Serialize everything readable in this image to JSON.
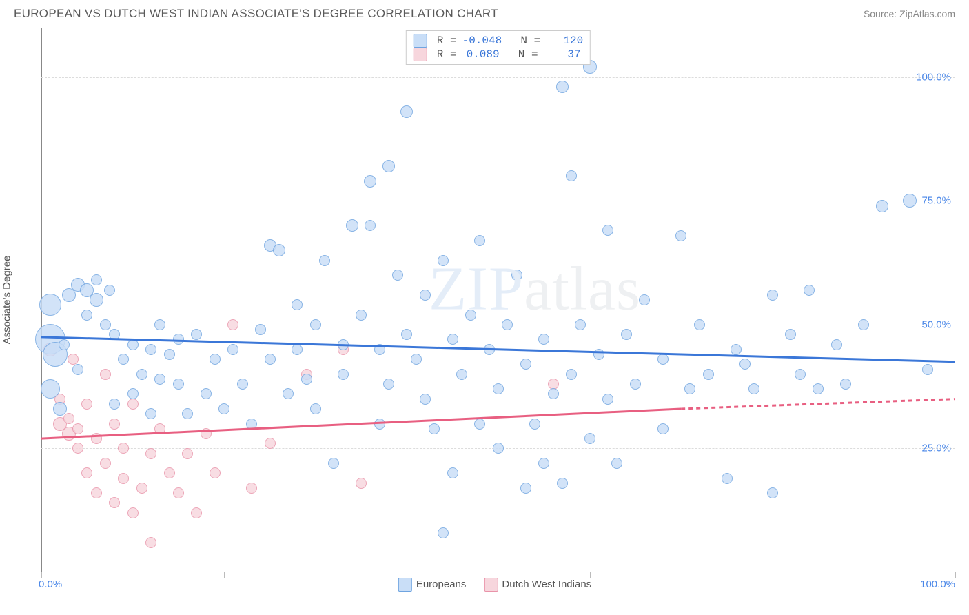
{
  "header": {
    "title": "EUROPEAN VS DUTCH WEST INDIAN ASSOCIATE'S DEGREE CORRELATION CHART",
    "source": "Source: ZipAtlas.com"
  },
  "watermark": {
    "part1": "ZIP",
    "part2": "atlas"
  },
  "yaxis_label": "Associate's Degree",
  "chart": {
    "type": "scatter",
    "xlim": [
      0,
      100
    ],
    "ylim": [
      0,
      110
    ],
    "gridlines_y": [
      25,
      50,
      75,
      100
    ],
    "ytick_labels": [
      "25.0%",
      "50.0%",
      "75.0%",
      "100.0%"
    ],
    "xticks": [
      0,
      20,
      40,
      60,
      80,
      100
    ],
    "xlim_labels": {
      "left": "0.0%",
      "right": "100.0%"
    },
    "background_color": "#ffffff",
    "grid_color": "#dcdcdc",
    "axis_color": "#888888",
    "tick_label_color": "#4a87e8"
  },
  "series": {
    "blue": {
      "label": "Europeans",
      "fill": "#c9def7",
      "stroke": "#6fa4e0",
      "line_color": "#3b77d8",
      "trend": {
        "y_at_x0": 47.5,
        "y_at_x100": 42.5
      },
      "stats": {
        "R": "-0.048",
        "N": "120"
      },
      "points": [
        {
          "x": 1,
          "y": 47,
          "r": 22
        },
        {
          "x": 1,
          "y": 54,
          "r": 16
        },
        {
          "x": 1,
          "y": 37,
          "r": 14
        },
        {
          "x": 1.5,
          "y": 44,
          "r": 18
        },
        {
          "x": 2,
          "y": 33,
          "r": 10
        },
        {
          "x": 2.5,
          "y": 46,
          "r": 8
        },
        {
          "x": 3,
          "y": 56,
          "r": 10
        },
        {
          "x": 4,
          "y": 58,
          "r": 10
        },
        {
          "x": 4,
          "y": 41,
          "r": 8
        },
        {
          "x": 5,
          "y": 57,
          "r": 10
        },
        {
          "x": 5,
          "y": 52,
          "r": 8
        },
        {
          "x": 6,
          "y": 55,
          "r": 10
        },
        {
          "x": 6,
          "y": 59,
          "r": 8
        },
        {
          "x": 7,
          "y": 50,
          "r": 8
        },
        {
          "x": 7.5,
          "y": 57,
          "r": 8
        },
        {
          "x": 8,
          "y": 48,
          "r": 8
        },
        {
          "x": 8,
          "y": 34,
          "r": 8
        },
        {
          "x": 9,
          "y": 43,
          "r": 8
        },
        {
          "x": 10,
          "y": 46,
          "r": 8
        },
        {
          "x": 10,
          "y": 36,
          "r": 8
        },
        {
          "x": 11,
          "y": 40,
          "r": 8
        },
        {
          "x": 12,
          "y": 45,
          "r": 8
        },
        {
          "x": 12,
          "y": 32,
          "r": 8
        },
        {
          "x": 13,
          "y": 50,
          "r": 8
        },
        {
          "x": 13,
          "y": 39,
          "r": 8
        },
        {
          "x": 14,
          "y": 44,
          "r": 8
        },
        {
          "x": 15,
          "y": 38,
          "r": 8
        },
        {
          "x": 15,
          "y": 47,
          "r": 8
        },
        {
          "x": 16,
          "y": 32,
          "r": 8
        },
        {
          "x": 17,
          "y": 48,
          "r": 8
        },
        {
          "x": 18,
          "y": 36,
          "r": 8
        },
        {
          "x": 19,
          "y": 43,
          "r": 8
        },
        {
          "x": 20,
          "y": 33,
          "r": 8
        },
        {
          "x": 21,
          "y": 45,
          "r": 8
        },
        {
          "x": 22,
          "y": 38,
          "r": 8
        },
        {
          "x": 23,
          "y": 30,
          "r": 8
        },
        {
          "x": 24,
          "y": 49,
          "r": 8
        },
        {
          "x": 25,
          "y": 66,
          "r": 9
        },
        {
          "x": 25,
          "y": 43,
          "r": 8
        },
        {
          "x": 26,
          "y": 65,
          "r": 9
        },
        {
          "x": 27,
          "y": 36,
          "r": 8
        },
        {
          "x": 28,
          "y": 45,
          "r": 8
        },
        {
          "x": 28,
          "y": 54,
          "r": 8
        },
        {
          "x": 29,
          "y": 39,
          "r": 8
        },
        {
          "x": 30,
          "y": 50,
          "r": 8
        },
        {
          "x": 30,
          "y": 33,
          "r": 8
        },
        {
          "x": 31,
          "y": 63,
          "r": 8
        },
        {
          "x": 32,
          "y": 22,
          "r": 8
        },
        {
          "x": 33,
          "y": 46,
          "r": 8
        },
        {
          "x": 33,
          "y": 40,
          "r": 8
        },
        {
          "x": 34,
          "y": 70,
          "r": 9
        },
        {
          "x": 35,
          "y": 52,
          "r": 8
        },
        {
          "x": 36,
          "y": 79,
          "r": 9
        },
        {
          "x": 36,
          "y": 70,
          "r": 8
        },
        {
          "x": 37,
          "y": 45,
          "r": 8
        },
        {
          "x": 37,
          "y": 30,
          "r": 8
        },
        {
          "x": 38,
          "y": 82,
          "r": 9
        },
        {
          "x": 38,
          "y": 38,
          "r": 8
        },
        {
          "x": 39,
          "y": 60,
          "r": 8
        },
        {
          "x": 40,
          "y": 48,
          "r": 8
        },
        {
          "x": 40,
          "y": 93,
          "r": 9
        },
        {
          "x": 41,
          "y": 43,
          "r": 8
        },
        {
          "x": 42,
          "y": 35,
          "r": 8
        },
        {
          "x": 42,
          "y": 56,
          "r": 8
        },
        {
          "x": 43,
          "y": 29,
          "r": 8
        },
        {
          "x": 44,
          "y": 63,
          "r": 8
        },
        {
          "x": 44,
          "y": 8,
          "r": 8
        },
        {
          "x": 45,
          "y": 47,
          "r": 8
        },
        {
          "x": 45,
          "y": 20,
          "r": 8
        },
        {
          "x": 46,
          "y": 40,
          "r": 8
        },
        {
          "x": 47,
          "y": 52,
          "r": 8
        },
        {
          "x": 48,
          "y": 30,
          "r": 8
        },
        {
          "x": 48,
          "y": 67,
          "r": 8
        },
        {
          "x": 49,
          "y": 45,
          "r": 8
        },
        {
          "x": 50,
          "y": 25,
          "r": 8
        },
        {
          "x": 50,
          "y": 37,
          "r": 8
        },
        {
          "x": 51,
          "y": 50,
          "r": 8
        },
        {
          "x": 52,
          "y": 60,
          "r": 8
        },
        {
          "x": 53,
          "y": 17,
          "r": 8
        },
        {
          "x": 53,
          "y": 42,
          "r": 8
        },
        {
          "x": 54,
          "y": 30,
          "r": 8
        },
        {
          "x": 55,
          "y": 47,
          "r": 8
        },
        {
          "x": 55,
          "y": 22,
          "r": 8
        },
        {
          "x": 56,
          "y": 36,
          "r": 8
        },
        {
          "x": 57,
          "y": 18,
          "r": 8
        },
        {
          "x": 57,
          "y": 98,
          "r": 9
        },
        {
          "x": 58,
          "y": 80,
          "r": 8
        },
        {
          "x": 58,
          "y": 40,
          "r": 8
        },
        {
          "x": 59,
          "y": 50,
          "r": 8
        },
        {
          "x": 60,
          "y": 27,
          "r": 8
        },
        {
          "x": 60,
          "y": 102,
          "r": 10
        },
        {
          "x": 61,
          "y": 44,
          "r": 8
        },
        {
          "x": 62,
          "y": 35,
          "r": 8
        },
        {
          "x": 62,
          "y": 69,
          "r": 8
        },
        {
          "x": 63,
          "y": 22,
          "r": 8
        },
        {
          "x": 64,
          "y": 48,
          "r": 8
        },
        {
          "x": 65,
          "y": 38,
          "r": 8
        },
        {
          "x": 66,
          "y": 55,
          "r": 8
        },
        {
          "x": 68,
          "y": 43,
          "r": 8
        },
        {
          "x": 68,
          "y": 29,
          "r": 8
        },
        {
          "x": 70,
          "y": 68,
          "r": 8
        },
        {
          "x": 71,
          "y": 37,
          "r": 8
        },
        {
          "x": 72,
          "y": 50,
          "r": 8
        },
        {
          "x": 73,
          "y": 40,
          "r": 8
        },
        {
          "x": 75,
          "y": 19,
          "r": 8
        },
        {
          "x": 76,
          "y": 45,
          "r": 8
        },
        {
          "x": 77,
          "y": 42,
          "r": 8
        },
        {
          "x": 78,
          "y": 37,
          "r": 8
        },
        {
          "x": 80,
          "y": 56,
          "r": 8
        },
        {
          "x": 80,
          "y": 16,
          "r": 8
        },
        {
          "x": 82,
          "y": 48,
          "r": 8
        },
        {
          "x": 83,
          "y": 40,
          "r": 8
        },
        {
          "x": 84,
          "y": 57,
          "r": 8
        },
        {
          "x": 85,
          "y": 37,
          "r": 8
        },
        {
          "x": 87,
          "y": 46,
          "r": 8
        },
        {
          "x": 88,
          "y": 38,
          "r": 8
        },
        {
          "x": 90,
          "y": 50,
          "r": 8
        },
        {
          "x": 92,
          "y": 74,
          "r": 9
        },
        {
          "x": 95,
          "y": 75,
          "r": 10
        },
        {
          "x": 97,
          "y": 41,
          "r": 8
        }
      ]
    },
    "pink": {
      "label": "Dutch West Indians",
      "fill": "#f7d6dd",
      "stroke": "#e993a9",
      "line_color": "#e85f81",
      "trend": {
        "y_at_x0": 27,
        "y_at_x70": 33,
        "y_at_x100": 35
      },
      "stats": {
        "R": "0.089",
        "N": "37"
      },
      "points": [
        {
          "x": 1,
          "y": 45,
          "r": 10
        },
        {
          "x": 2,
          "y": 30,
          "r": 10
        },
        {
          "x": 2,
          "y": 35,
          "r": 8
        },
        {
          "x": 3,
          "y": 28,
          "r": 10
        },
        {
          "x": 3,
          "y": 31,
          "r": 8
        },
        {
          "x": 3.5,
          "y": 43,
          "r": 8
        },
        {
          "x": 4,
          "y": 29,
          "r": 8
        },
        {
          "x": 4,
          "y": 25,
          "r": 8
        },
        {
          "x": 5,
          "y": 20,
          "r": 8
        },
        {
          "x": 5,
          "y": 34,
          "r": 8
        },
        {
          "x": 6,
          "y": 16,
          "r": 8
        },
        {
          "x": 6,
          "y": 27,
          "r": 8
        },
        {
          "x": 7,
          "y": 22,
          "r": 8
        },
        {
          "x": 7,
          "y": 40,
          "r": 8
        },
        {
          "x": 8,
          "y": 14,
          "r": 8
        },
        {
          "x": 8,
          "y": 30,
          "r": 8
        },
        {
          "x": 9,
          "y": 25,
          "r": 8
        },
        {
          "x": 9,
          "y": 19,
          "r": 8
        },
        {
          "x": 10,
          "y": 34,
          "r": 8
        },
        {
          "x": 10,
          "y": 12,
          "r": 8
        },
        {
          "x": 11,
          "y": 17,
          "r": 8
        },
        {
          "x": 12,
          "y": 24,
          "r": 8
        },
        {
          "x": 12,
          "y": 6,
          "r": 8
        },
        {
          "x": 13,
          "y": 29,
          "r": 8
        },
        {
          "x": 14,
          "y": 20,
          "r": 8
        },
        {
          "x": 15,
          "y": 16,
          "r": 8
        },
        {
          "x": 16,
          "y": 24,
          "r": 8
        },
        {
          "x": 17,
          "y": 12,
          "r": 8
        },
        {
          "x": 18,
          "y": 28,
          "r": 8
        },
        {
          "x": 19,
          "y": 20,
          "r": 8
        },
        {
          "x": 21,
          "y": 50,
          "r": 8
        },
        {
          "x": 23,
          "y": 17,
          "r": 8
        },
        {
          "x": 25,
          "y": 26,
          "r": 8
        },
        {
          "x": 29,
          "y": 40,
          "r": 8
        },
        {
          "x": 33,
          "y": 45,
          "r": 8
        },
        {
          "x": 35,
          "y": 18,
          "r": 8
        },
        {
          "x": 56,
          "y": 38,
          "r": 8
        }
      ]
    }
  }
}
